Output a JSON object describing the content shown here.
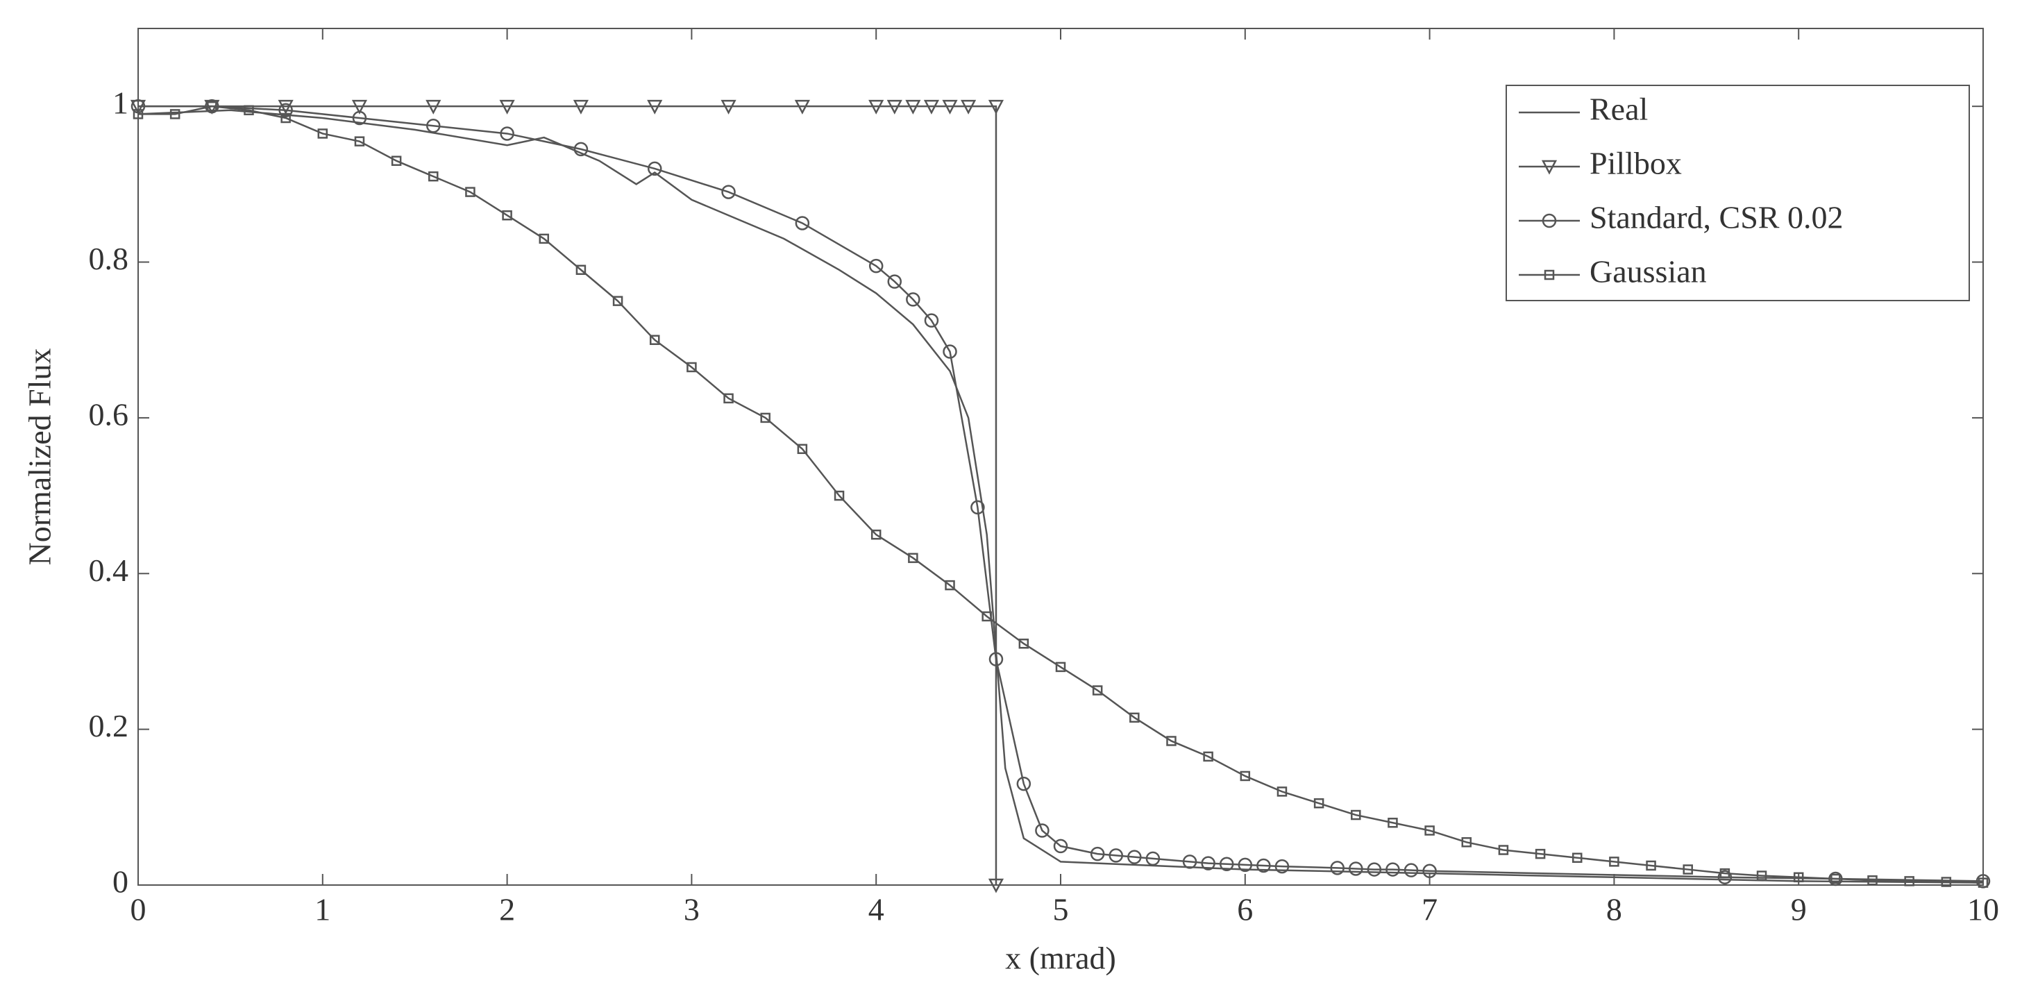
{
  "chart_data": {
    "type": "line",
    "xlabel": "x (mrad)",
    "ylabel": "Normalized Flux",
    "xlim": [
      0,
      10
    ],
    "xticks": [
      0,
      1,
      2,
      3,
      4,
      5,
      6,
      7,
      8,
      9,
      10
    ],
    "ylim": [
      0,
      1.1
    ],
    "yticks": [
      0,
      0.2,
      0.4,
      0.6,
      0.8,
      1
    ],
    "grid": false,
    "legend": "upper right",
    "series": [
      {
        "name": "Real",
        "color": "#555555",
        "marker": "none",
        "x": [
          0,
          0.5,
          1,
          1.5,
          2,
          2.2,
          2.5,
          2.7,
          2.8,
          3,
          3.2,
          3.5,
          3.8,
          4,
          4.2,
          4.4,
          4.5,
          4.6,
          4.65,
          4.7,
          4.8,
          5,
          5.5,
          6,
          7,
          8,
          9,
          10
        ],
        "values": [
          0.99,
          0.995,
          0.985,
          0.97,
          0.95,
          0.96,
          0.93,
          0.9,
          0.915,
          0.88,
          0.86,
          0.83,
          0.79,
          0.76,
          0.72,
          0.66,
          0.6,
          0.45,
          0.3,
          0.15,
          0.06,
          0.03,
          0.025,
          0.02,
          0.015,
          0.01,
          0.005,
          0.003
        ]
      },
      {
        "name": "Pillbox",
        "color": "#555555",
        "marker": "triangle-down",
        "x": [
          0,
          0.4,
          0.8,
          1.2,
          1.6,
          2,
          2.4,
          2.8,
          3.2,
          3.6,
          4,
          4.1,
          4.2,
          4.3,
          4.4,
          4.5,
          4.65,
          4.65
        ],
        "values": [
          1,
          1,
          1,
          1,
          1,
          1,
          1,
          1,
          1,
          1,
          1,
          1,
          1,
          1,
          1,
          1,
          1,
          0
        ]
      },
      {
        "name": "Standard, CSR 0.02",
        "color": "#555555",
        "marker": "circle",
        "x": [
          0,
          0.4,
          0.8,
          1.2,
          1.6,
          2,
          2.4,
          2.8,
          3.2,
          3.6,
          4,
          4.1,
          4.2,
          4.3,
          4.4,
          4.55,
          4.65,
          4.8,
          4.9,
          5,
          5.2,
          5.3,
          5.4,
          5.5,
          5.7,
          5.8,
          5.9,
          6,
          6.1,
          6.2,
          6.5,
          6.6,
          6.7,
          6.8,
          6.9,
          7,
          8.6,
          9.2,
          10
        ],
        "values": [
          1,
          1,
          0.995,
          0.985,
          0.975,
          0.965,
          0.945,
          0.92,
          0.89,
          0.85,
          0.795,
          0.775,
          0.752,
          0.725,
          0.685,
          0.485,
          0.29,
          0.13,
          0.07,
          0.05,
          0.04,
          0.038,
          0.036,
          0.034,
          0.03,
          0.028,
          0.027,
          0.026,
          0.025,
          0.024,
          0.022,
          0.021,
          0.02,
          0.02,
          0.019,
          0.018,
          0.01,
          0.008,
          0.005
        ]
      },
      {
        "name": "Gaussian",
        "color": "#555555",
        "marker": "square",
        "x": [
          0,
          0.2,
          0.4,
          0.6,
          0.8,
          1,
          1.2,
          1.4,
          1.6,
          1.8,
          2,
          2.2,
          2.4,
          2.6,
          2.8,
          3,
          3.2,
          3.4,
          3.6,
          3.8,
          4,
          4.2,
          4.4,
          4.6,
          4.8,
          5,
          5.2,
          5.4,
          5.6,
          5.8,
          6,
          6.2,
          6.4,
          6.6,
          6.8,
          7,
          7.2,
          7.4,
          7.6,
          7.8,
          8,
          8.2,
          8.4,
          8.6,
          8.8,
          9,
          9.2,
          9.4,
          9.6,
          9.8,
          10
        ],
        "values": [
          0.99,
          0.99,
          1,
          0.995,
          0.985,
          0.965,
          0.955,
          0.93,
          0.91,
          0.89,
          0.86,
          0.83,
          0.79,
          0.75,
          0.7,
          0.665,
          0.625,
          0.6,
          0.56,
          0.5,
          0.45,
          0.42,
          0.385,
          0.345,
          0.31,
          0.28,
          0.25,
          0.215,
          0.185,
          0.165,
          0.14,
          0.12,
          0.105,
          0.09,
          0.08,
          0.07,
          0.055,
          0.045,
          0.04,
          0.035,
          0.03,
          0.025,
          0.02,
          0.015,
          0.012,
          0.01,
          0.008,
          0.006,
          0.005,
          0.004,
          0.003
        ]
      }
    ]
  }
}
